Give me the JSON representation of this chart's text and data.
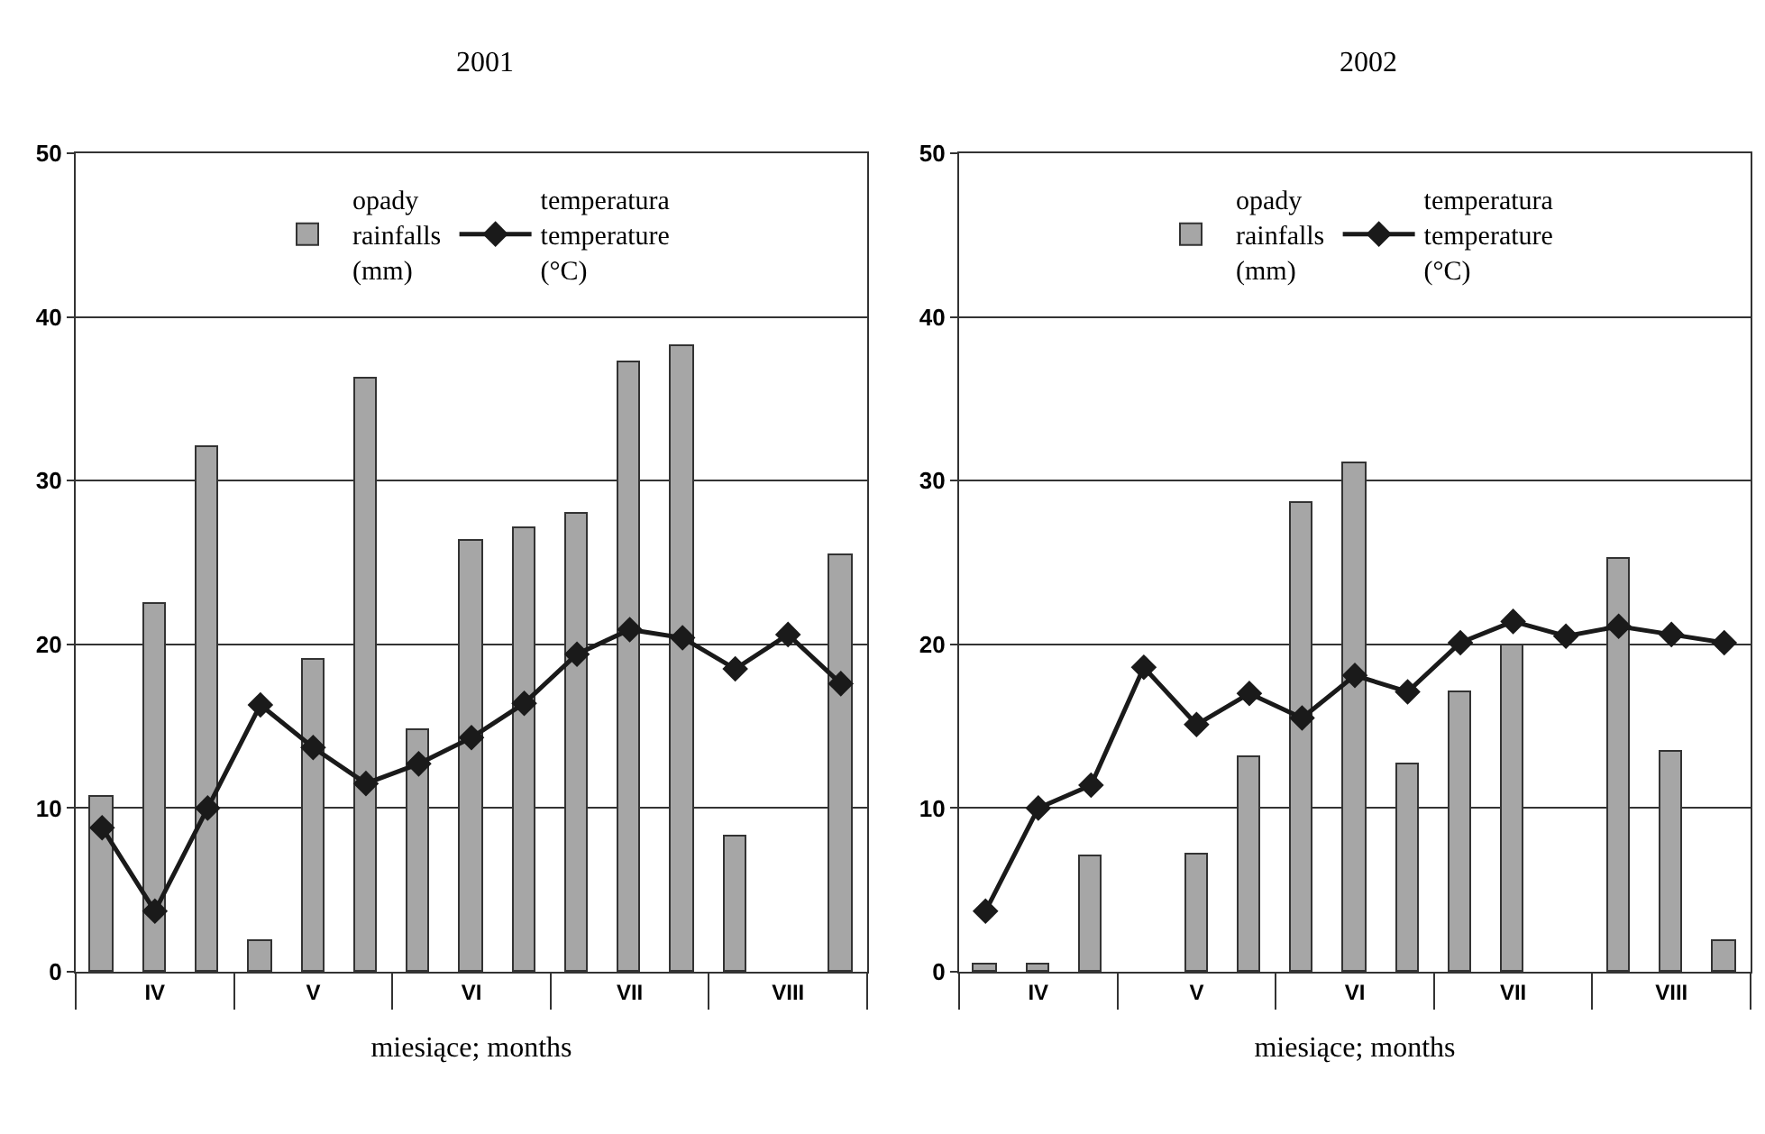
{
  "chart_data": [
    {
      "type": "bar",
      "title": "2001",
      "xlabel": "miesiące; months",
      "categories": [
        null,
        "IV",
        null,
        null,
        "V",
        null,
        null,
        "VI",
        null,
        null,
        "VII",
        null,
        null,
        "VIII",
        null
      ],
      "series": [
        {
          "name": "opady\nrainfalls\n(mm)",
          "color": "#a6a6a6",
          "values": [
            10.7,
            22.5,
            32,
            1.9,
            19,
            36.2,
            14.8,
            26.3,
            27.1,
            28,
            37.2,
            38.2,
            8.3,
            0,
            25.4
          ]
        },
        {
          "name": "temperatura\ntemperature\n(°C)",
          "type": "line",
          "color": "#1a1a1a",
          "marker": "diamond",
          "line_style": "solid",
          "values": [
            8.8,
            3.7,
            10,
            16.3,
            13.7,
            11.5,
            12.7,
            14.3,
            16.4,
            19.4,
            20.9,
            20.4,
            18.5,
            20.6,
            17.6
          ]
        }
      ],
      "ylim": [
        0,
        50
      ],
      "yticks": [
        0,
        10,
        20,
        30,
        40,
        50
      ],
      "grid": "y",
      "legend": "top"
    },
    {
      "type": "bar",
      "title": "2002",
      "xlabel": "miesiące; months",
      "categories": [
        null,
        "IV",
        null,
        null,
        "V",
        null,
        null,
        "VI",
        null,
        null,
        "VII",
        null,
        null,
        "VIII",
        null
      ],
      "series": [
        {
          "name": "opady\nrainfalls\n(mm)",
          "color": "#a6a6a6",
          "values": [
            0.4,
            0.4,
            7.1,
            0,
            7.2,
            13.1,
            28.6,
            31.1,
            12.7,
            17.1,
            19.9,
            0,
            25.2,
            13.4,
            1.9
          ]
        },
        {
          "name": "temperatura\ntemperature\n(°C)",
          "type": "line",
          "color": "#1a1a1a",
          "marker": "diamond",
          "line_style": "solid",
          "values": [
            3.7,
            10,
            11.4,
            18.6,
            15.1,
            17,
            15.5,
            18.1,
            17.1,
            20.1,
            21.4,
            20.5,
            21.1,
            20.6,
            20.1
          ]
        }
      ],
      "ylim": [
        0,
        50
      ],
      "yticks": [
        0,
        10,
        20,
        30,
        40,
        50
      ],
      "grid": "y",
      "legend": "top"
    }
  ]
}
